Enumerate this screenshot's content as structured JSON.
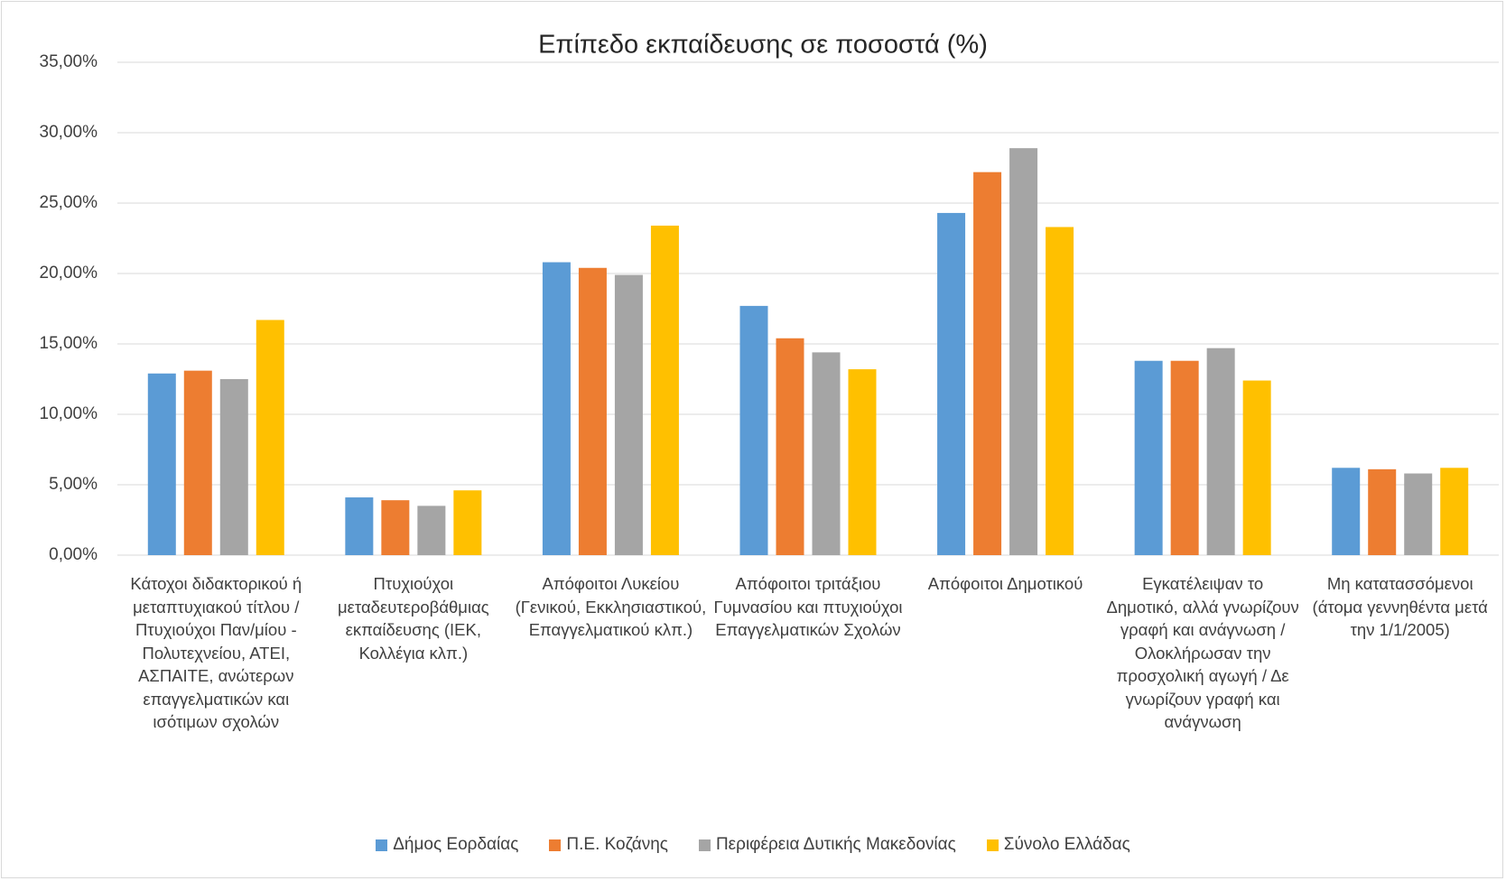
{
  "chart_data": {
    "type": "bar",
    "title": "Επίπεδο εκπαίδευσης σε ποσοστά (%)",
    "categories": [
      "Κάτοχοι διδακτορικού ή μεταπτυχιακού τίτλου / Πτυχιούχοι Παν/μίου - Πολυτεχνείου, ΑΤΕΙ, ΑΣΠΑΙΤΕ, ανώτερων επαγγελματικών και ισότιμων σχολών",
      "Πτυχιούχοι μεταδευτεροβάθμιας εκπαίδευσης (ΙΕΚ, Κολλέγια κλπ.)",
      "Απόφοιτοι Λυκείου (Γενικού, Εκκλησιαστικού, Επαγγελματικού κλπ.)",
      "Απόφοιτοι τριτάξιου Γυμνασίου και πτυχιούχοι Επαγγελματικών Σχολών",
      "Απόφοιτοι Δημοτικού",
      "Εγκατέλειψαν το Δημοτικό, αλλά γνωρίζουν γραφή και ανάγνωση / Ολοκλήρωσαν την προσχολική αγωγή / Δε γνωρίζουν γραφή και ανάγνωση",
      "Μη κατατασσόμενοι (άτομα γεννηθέντα μετά την 1/1/2005)"
    ],
    "series": [
      {
        "name": "Δήμος Εορδαίας",
        "color": "#5b9bd5",
        "values": [
          12.9,
          4.1,
          20.8,
          17.7,
          24.3,
          13.8,
          6.2
        ]
      },
      {
        "name": "Π.Ε. Κοζάνης",
        "color": "#ed7d31",
        "values": [
          13.1,
          3.9,
          20.4,
          15.4,
          27.2,
          13.8,
          6.1
        ]
      },
      {
        "name": "Περιφέρεια Δυτικής Μακεδονίας",
        "color": "#a5a5a5",
        "values": [
          12.5,
          3.5,
          19.9,
          14.4,
          28.9,
          14.7,
          5.8
        ]
      },
      {
        "name": "Σύνολο Ελλάδας",
        "color": "#ffc000",
        "values": [
          16.7,
          4.6,
          23.4,
          13.2,
          23.3,
          12.4,
          6.2
        ]
      }
    ],
    "ylim": [
      0,
      35
    ],
    "yticks": [
      {
        "value": 0,
        "label": "0,00%"
      },
      {
        "value": 5,
        "label": "5,00%"
      },
      {
        "value": 10,
        "label": "10,00%"
      },
      {
        "value": 15,
        "label": "15,00%"
      },
      {
        "value": 20,
        "label": "20,00%"
      },
      {
        "value": 25,
        "label": "25,00%"
      },
      {
        "value": 30,
        "label": "30,00%"
      },
      {
        "value": 35,
        "label": "35,00%"
      }
    ],
    "grid": true,
    "legend": "bottom"
  }
}
